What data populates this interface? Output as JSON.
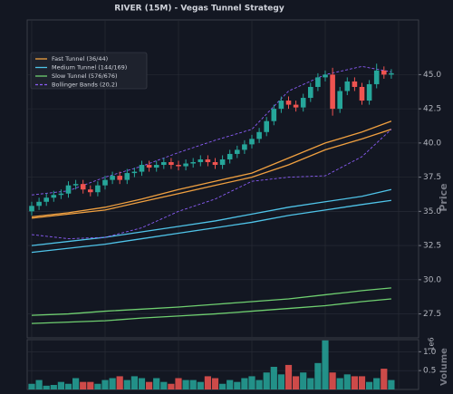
{
  "chart_data": [
    {
      "type": "candlestick",
      "title": "RIVER (15M) - Vegas Tunnel Strategy",
      "y_label": "Price",
      "open": [
        35.0,
        35.4,
        35.7,
        36.0,
        36.2,
        36.3,
        36.9,
        37.0,
        36.6,
        36.4,
        36.9,
        37.3,
        37.6,
        37.3,
        37.8,
        37.9,
        38.4,
        38.2,
        38.4,
        38.6,
        38.4,
        38.3,
        38.5,
        38.6,
        38.8,
        38.6,
        38.4,
        38.8,
        39.2,
        39.5,
        39.9,
        40.3,
        40.8,
        41.6,
        42.5,
        43.1,
        42.8,
        42.6,
        43.3,
        44.1,
        44.8,
        45.0,
        42.5,
        43.8,
        44.5,
        44.1,
        43.1,
        44.3,
        45.3,
        45.0
      ],
      "high": [
        35.7,
        36.0,
        36.3,
        36.5,
        36.6,
        37.2,
        37.3,
        37.3,
        36.9,
        37.2,
        37.6,
        37.9,
        37.9,
        38.1,
        38.2,
        38.7,
        38.7,
        38.7,
        38.9,
        38.9,
        38.7,
        38.8,
        38.9,
        39.1,
        39.1,
        38.9,
        39.1,
        39.5,
        39.8,
        40.2,
        40.6,
        41.1,
        41.9,
        42.8,
        43.4,
        43.4,
        43.1,
        43.6,
        44.4,
        45.1,
        45.3,
        45.5,
        44.1,
        44.8,
        44.8,
        44.4,
        44.6,
        45.8,
        45.6,
        45.4
      ],
      "low": [
        34.7,
        35.1,
        35.4,
        35.7,
        35.9,
        36.0,
        36.6,
        36.3,
        36.1,
        36.1,
        36.6,
        37.0,
        37.0,
        37.0,
        37.5,
        37.6,
        37.9,
        37.9,
        38.1,
        38.1,
        38.0,
        38.0,
        38.2,
        38.3,
        38.3,
        38.1,
        38.1,
        38.5,
        38.9,
        39.2,
        39.6,
        40.0,
        40.5,
        41.3,
        42.2,
        42.5,
        42.3,
        42.3,
        43.0,
        43.8,
        44.5,
        42.0,
        42.2,
        43.5,
        43.8,
        42.8,
        42.8,
        44.0,
        44.7,
        44.7
      ],
      "close": [
        35.4,
        35.7,
        36.0,
        36.2,
        36.3,
        36.9,
        37.0,
        36.6,
        36.4,
        36.9,
        37.3,
        37.6,
        37.3,
        37.8,
        37.9,
        38.4,
        38.2,
        38.4,
        38.6,
        38.4,
        38.3,
        38.5,
        38.6,
        38.8,
        38.6,
        38.4,
        38.8,
        39.2,
        39.5,
        39.9,
        40.3,
        40.8,
        41.6,
        42.5,
        43.1,
        42.8,
        42.6,
        43.3,
        44.1,
        44.8,
        45.0,
        42.5,
        43.8,
        44.5,
        44.1,
        43.1,
        44.3,
        45.3,
        45.0,
        45.1
      ],
      "up_color": "#26a69a",
      "down_color": "#ef5350",
      "line_x": [
        0,
        5,
        10,
        15,
        20,
        25,
        30,
        35,
        40,
        45,
        49
      ],
      "series": [
        {
          "name": "Fast Tunnel (36/44)",
          "color": "#f0a040",
          "dashed": false,
          "lines": [
            [
              34.5,
              34.8,
              35.1,
              35.7,
              36.3,
              36.9,
              37.5,
              38.4,
              39.5,
              40.3,
              41.0
            ],
            [
              34.6,
              34.9,
              35.3,
              35.9,
              36.6,
              37.2,
              37.8,
              38.9,
              40.0,
              40.8,
              41.6
            ]
          ]
        },
        {
          "name": "Medium Tunnel (144/169)",
          "color": "#4fc3e8",
          "dashed": false,
          "lines": [
            [
              32.0,
              32.3,
              32.6,
              33.0,
              33.4,
              33.8,
              34.2,
              34.7,
              35.1,
              35.5,
              35.8
            ],
            [
              32.5,
              32.8,
              33.1,
              33.5,
              33.9,
              34.3,
              34.8,
              35.3,
              35.7,
              36.1,
              36.6
            ]
          ]
        },
        {
          "name": "Slow Tunnel (576/676)",
          "color": "#6fcf70",
          "dashed": false,
          "lines": [
            [
              26.8,
              26.9,
              27.0,
              27.2,
              27.35,
              27.5,
              27.7,
              27.9,
              28.1,
              28.4,
              28.6
            ],
            [
              27.4,
              27.5,
              27.7,
              27.85,
              28.0,
              28.2,
              28.4,
              28.6,
              28.9,
              29.2,
              29.4
            ]
          ]
        },
        {
          "name": "Bollinger Bands (20,2)",
          "color": "#8a5cf6",
          "dashed": true,
          "lines": [
            [
              36.2,
              36.5,
              37.5,
              38.3,
              39.3,
              40.2,
              41.0,
              43.8,
              45.0,
              45.6,
              45.2
            ],
            [
              33.3,
              33.0,
              33.1,
              33.8,
              35.0,
              35.9,
              37.2,
              37.5,
              37.6,
              39.0,
              41.0
            ]
          ]
        }
      ],
      "ylim": [
        25.75,
        49.0
      ],
      "yticks": [
        27.5,
        {
          "value": 30,
          "label": "30.0"
        },
        32.5,
        {
          "value": 35,
          "label": "35.0"
        },
        37.5,
        {
          "value": 40,
          "label": "40.0"
        },
        42.5,
        {
          "value": 45,
          "label": "45.0"
        }
      ],
      "grid": true,
      "legend": "upper left"
    },
    {
      "type": "bar",
      "y_label": "Volume",
      "offset_label": "1e6",
      "values": [
        0.15,
        0.25,
        0.1,
        0.12,
        0.2,
        0.15,
        0.3,
        0.2,
        0.2,
        0.15,
        0.25,
        0.3,
        0.35,
        0.25,
        0.35,
        0.3,
        0.2,
        0.3,
        0.2,
        0.15,
        0.3,
        0.25,
        0.25,
        0.2,
        0.35,
        0.3,
        0.15,
        0.25,
        0.2,
        0.3,
        0.35,
        0.25,
        0.45,
        0.6,
        0.4,
        0.65,
        0.35,
        0.45,
        0.3,
        0.7,
        1.3,
        0.45,
        0.3,
        0.4,
        0.35,
        0.35,
        0.2,
        0.3,
        0.55,
        0.25
      ],
      "ylim": [
        0,
        1.32
      ],
      "yticks": [
        0.5,
        {
          "value": 1,
          "label": "1.0"
        }
      ],
      "grid": true
    }
  ]
}
